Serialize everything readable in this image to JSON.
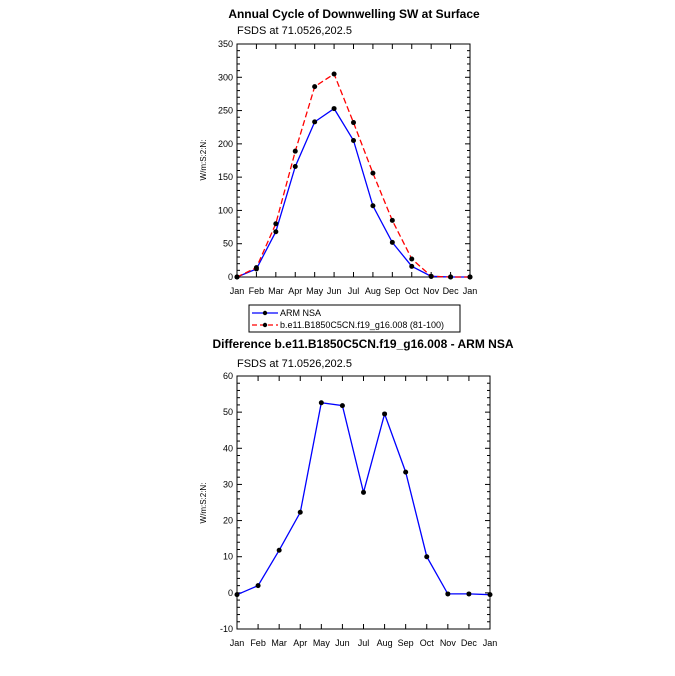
{
  "chart_data": [
    {
      "type": "line",
      "title": "Annual Cycle of Downwelling SW at Surface",
      "subtitle": "FSDS at 71.0526,202.5",
      "ylabel": "W/m:S:2:N:",
      "xlabel": "",
      "categories": [
        "Jan",
        "Feb",
        "Mar",
        "Apr",
        "May",
        "Jun",
        "Jul",
        "Aug",
        "Sep",
        "Oct",
        "Nov",
        "Dec",
        "Jan"
      ],
      "yticks": [
        0,
        50,
        100,
        150,
        200,
        250,
        300,
        350
      ],
      "ylim": [
        0,
        350
      ],
      "series": [
        {
          "name": "ARM NSA",
          "color": "#0000ff",
          "dash": "solid",
          "values": [
            0,
            12,
            68,
            166,
            233,
            253,
            205,
            107,
            52,
            16,
            1,
            0,
            0
          ]
        },
        {
          "name": "b.e11.B1850C5CN.f19_g16.008 (81-100)",
          "color": "#ff0000",
          "dash": "dashed",
          "values": [
            0,
            14,
            80,
            189,
            286,
            305,
            232,
            156,
            85,
            27,
            1,
            0,
            0
          ]
        }
      ],
      "legend": [
        "ARM NSA",
        "b.e11.B1850C5CN.f19_g16.008 (81-100)"
      ]
    },
    {
      "type": "line",
      "title": "Difference b.e11.B1850C5CN.f19_g16.008 - ARM NSA",
      "subtitle": "FSDS at 71.0526,202.5",
      "ylabel": "W/m:S:2:N:",
      "xlabel": "",
      "categories": [
        "Jan",
        "Feb",
        "Mar",
        "Apr",
        "May",
        "Jun",
        "Jul",
        "Aug",
        "Sep",
        "Oct",
        "Nov",
        "Dec",
        "Jan"
      ],
      "yticks": [
        -10,
        0,
        10,
        20,
        30,
        40,
        50,
        60
      ],
      "ylim": [
        -10,
        60
      ],
      "series": [
        {
          "name": "Difference",
          "color": "#0000ff",
          "dash": "solid",
          "values": [
            -0.5,
            2,
            11.8,
            22.3,
            52.6,
            51.8,
            27.8,
            49.5,
            33.4,
            10,
            -0.3,
            -0.3,
            -0.5
          ]
        }
      ]
    }
  ]
}
